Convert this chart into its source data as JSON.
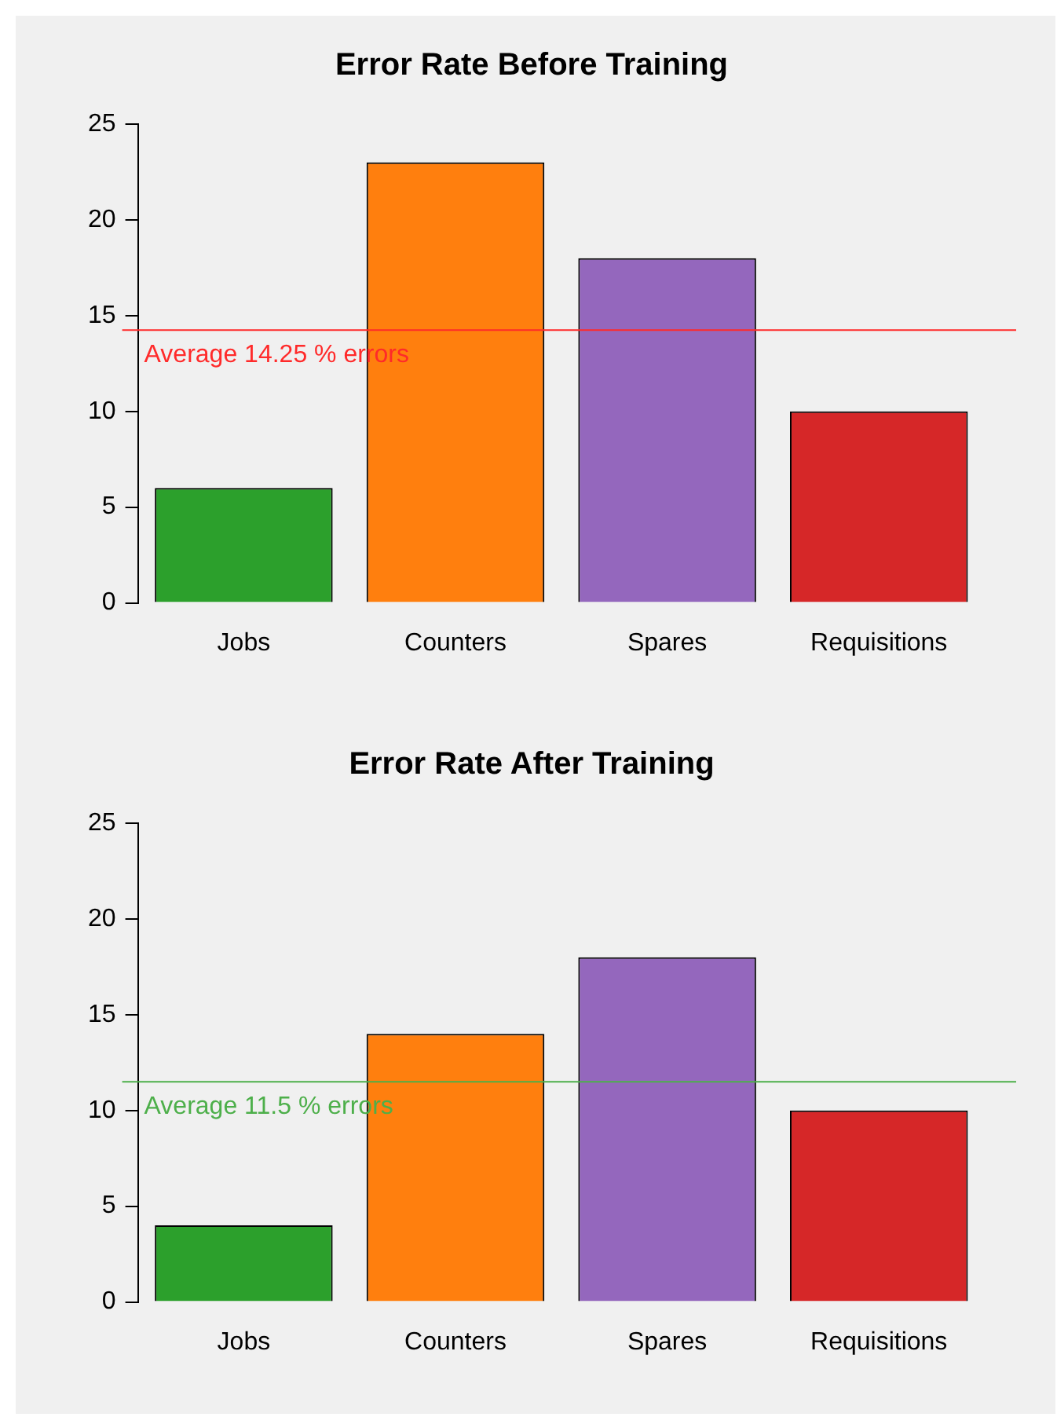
{
  "chart_data": [
    {
      "type": "bar",
      "title": "Error Rate Before Training",
      "categories": [
        "Jobs",
        "Counters",
        "Spares",
        "Requisitions"
      ],
      "values": [
        6,
        23,
        18,
        10
      ],
      "colors": [
        "#2ca02c",
        "#ff7f0e",
        "#9467bd",
        "#d62728"
      ],
      "ylim": [
        0,
        25
      ],
      "yticks": [
        0,
        5,
        10,
        15,
        20,
        25
      ],
      "grid": false,
      "legend": false,
      "ref_lines": [
        {
          "axis": "y",
          "value": 14.25,
          "label": "Average 14.25 % errors",
          "color": "#ff2a2a"
        }
      ]
    },
    {
      "type": "bar",
      "title": "Error Rate After Training",
      "categories": [
        "Jobs",
        "Counters",
        "Spares",
        "Requisitions"
      ],
      "values": [
        4,
        14,
        18,
        10
      ],
      "colors": [
        "#2ca02c",
        "#ff7f0e",
        "#9467bd",
        "#d62728"
      ],
      "ylim": [
        0,
        25
      ],
      "yticks": [
        0,
        5,
        10,
        15,
        20,
        25
      ],
      "grid": false,
      "legend": false,
      "ref_lines": [
        {
          "axis": "y",
          "value": 11.5,
          "label": "Average 11.5 % errors",
          "color": "#4daf4a"
        }
      ]
    }
  ]
}
